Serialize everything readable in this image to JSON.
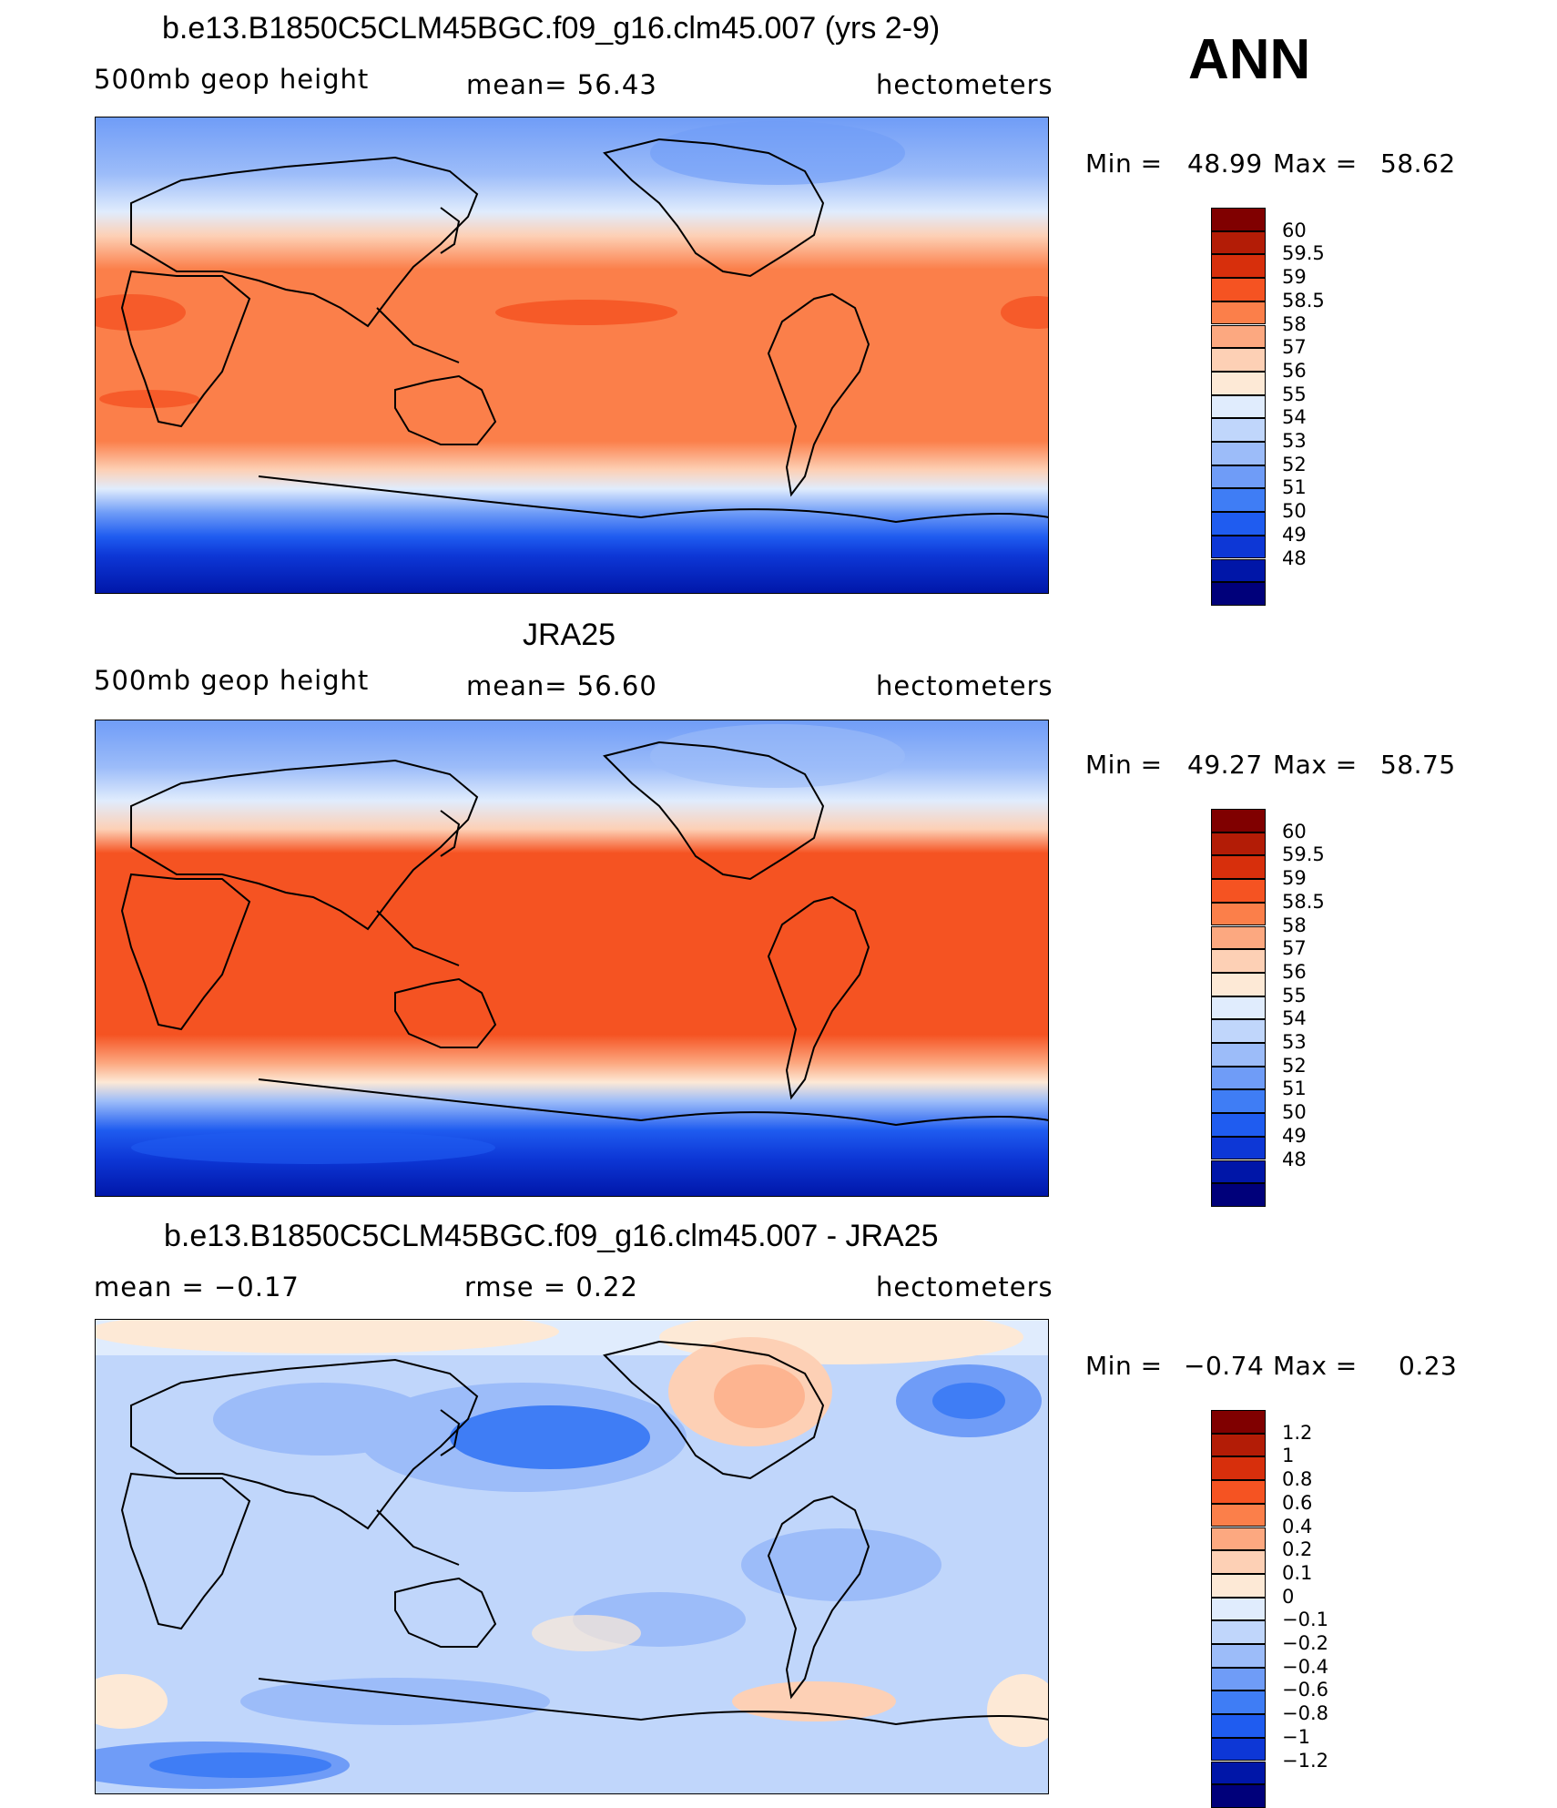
{
  "season": "ANN",
  "colors": {
    "full_scale": [
      "#00007a",
      "#0016a8",
      "#0d37d6",
      "#1f5cf0",
      "#3f7df5",
      "#6f9cf7",
      "#9cbcf9",
      "#c0d6fb",
      "#e0ecfd",
      "#fde9d6",
      "#fdd0b5",
      "#fca880",
      "#fb7f4a",
      "#f55322",
      "#d72f0c",
      "#b31c06",
      "#800000"
    ],
    "diff_scale": [
      "#00007a",
      "#0016a8",
      "#0d37d6",
      "#1f5cf0",
      "#3f7df5",
      "#6f9cf7",
      "#9cbcf9",
      "#c0d6fb",
      "#e0ecfd",
      "#fde9d6",
      "#fdd0b5",
      "#fca880",
      "#fb7f4a",
      "#f55322",
      "#d72f0c",
      "#b31c06",
      "#800000"
    ]
  },
  "chart_data": [
    {
      "type": "heatmap",
      "title": "b.e13.B1850C5CLM45BGC.f09_g16.clm45.007 (yrs 2-9)",
      "variable": "500mb  geop  height",
      "mean_label": "mean=   56.43",
      "units": "hectometers",
      "min_label": "Min =",
      "min_value": "48.99",
      "max_label": "Max =",
      "max_value": "58.62",
      "colorbar_levels": [
        "60",
        "59.5",
        "59",
        "58.5",
        "58",
        "57",
        "56",
        "55",
        "54",
        "53",
        "52",
        "51",
        "50",
        "49",
        "48"
      ]
    },
    {
      "type": "heatmap",
      "title": "JRA25",
      "variable": "500mb  geop  height",
      "mean_label": "mean=   56.60",
      "units": "hectometers",
      "min_label": "Min =",
      "min_value": "49.27",
      "max_label": "Max =",
      "max_value": "58.75",
      "colorbar_levels": [
        "60",
        "59.5",
        "59",
        "58.5",
        "58",
        "57",
        "56",
        "55",
        "54",
        "53",
        "52",
        "51",
        "50",
        "49",
        "48"
      ]
    },
    {
      "type": "heatmap",
      "title": "b.e13.B1850C5CLM45BGC.f09_g16.clm45.007 - JRA25",
      "mean_label": "mean =   −0.17",
      "rmse_label": "rmse =    0.22",
      "units": "hectometers",
      "min_label": "Min =",
      "min_value": "−0.74",
      "max_label": "Max =",
      "max_value": "0.23",
      "colorbar_levels": [
        "1.2",
        "1",
        "0.8",
        "0.6",
        "0.4",
        "0.2",
        "0.1",
        "0",
        "−0.1",
        "−0.2",
        "−0.4",
        "−0.6",
        "−0.8",
        "−1",
        "−1.2"
      ]
    }
  ]
}
